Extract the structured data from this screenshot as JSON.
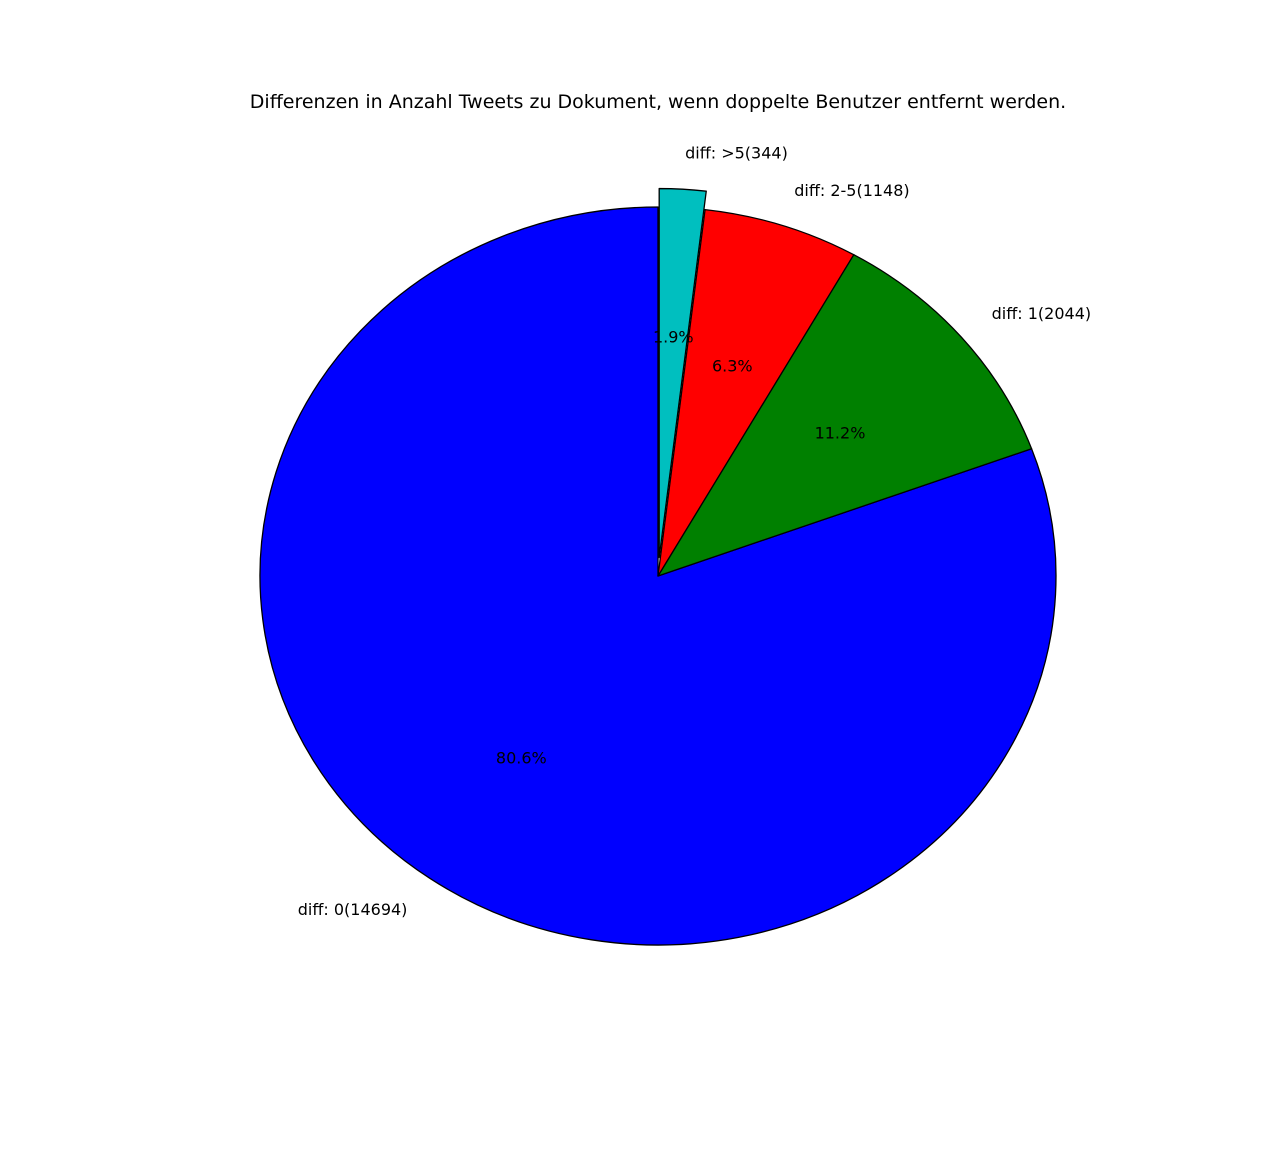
{
  "chart_data": {
    "type": "pie",
    "title": "Differenzen in Anzahl Tweets zu Dokument, wenn doppelte Benutzer entfernt werden.",
    "start_angle_deg": 90,
    "direction": "counterclockwise",
    "slices": [
      {
        "label": "diff: 0(14694)",
        "value": 14694,
        "percent_label": "80.6%",
        "color": "#0000ff",
        "explode": 0
      },
      {
        "label": "diff: 1(2044)",
        "value": 2044,
        "percent_label": "11.2%",
        "color": "#008000",
        "explode": 0
      },
      {
        "label": "diff: 2-5(1148)",
        "value": 1148,
        "percent_label": "6.3%",
        "color": "#ff0000",
        "explode": 0
      },
      {
        "label": "diff: >5(344)",
        "value": 344,
        "percent_label": "1.9%",
        "color": "#00bfbf",
        "explode": 0.05
      }
    ]
  }
}
